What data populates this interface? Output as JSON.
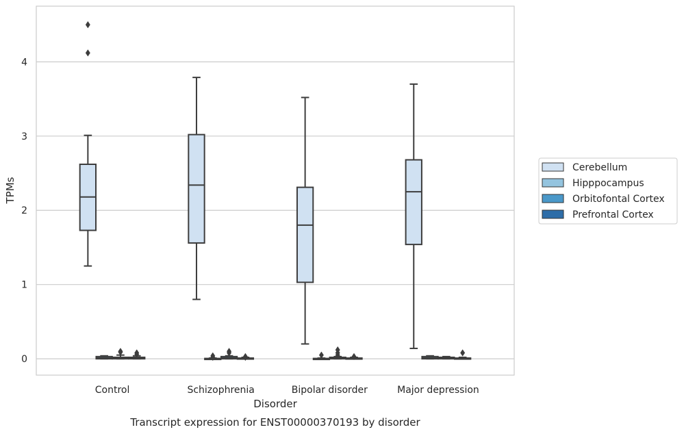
{
  "chart_data": {
    "type": "box",
    "title": "",
    "caption": "Transcript expression for ENST00000370193 by disorder",
    "xlabel": "Disorder",
    "ylabel": "TPMs",
    "ylim": [
      -0.22,
      4.75
    ],
    "yticks": [
      0,
      1,
      2,
      3,
      4
    ],
    "grid": "horizontal",
    "legend_position": "right",
    "categories": [
      "Control",
      "Schizophrenia",
      "Bipolar disorder",
      "Major depression"
    ],
    "series": [
      {
        "name": "Cerebellum",
        "color": "#d0e1f2",
        "boxes": [
          {
            "whislo": 1.25,
            "q1": 1.73,
            "med": 2.18,
            "q3": 2.62,
            "whishi": 3.01,
            "fliers": [
              4.12,
              4.5
            ]
          },
          {
            "whislo": 0.8,
            "q1": 1.56,
            "med": 2.34,
            "q3": 3.02,
            "whishi": 3.79,
            "fliers": []
          },
          {
            "whislo": 0.2,
            "q1": 1.03,
            "med": 1.8,
            "q3": 2.31,
            "whishi": 3.52,
            "fliers": []
          },
          {
            "whislo": 0.14,
            "q1": 1.54,
            "med": 2.25,
            "q3": 2.68,
            "whishi": 3.7,
            "fliers": []
          }
        ]
      },
      {
        "name": "Hipppocampus",
        "color": "#94c4df",
        "boxes": [
          {
            "whislo": 0.0,
            "q1": 0.0,
            "med": 0.01,
            "q3": 0.03,
            "whishi": 0.04,
            "fliers": []
          },
          {
            "whislo": 0.0,
            "q1": 0.0,
            "med": 0.0,
            "q3": 0.005,
            "whishi": 0.01,
            "fliers": [
              0.02,
              0.04
            ]
          },
          {
            "whislo": 0.0,
            "q1": 0.0,
            "med": 0.0,
            "q3": 0.005,
            "whishi": 0.01,
            "fliers": [
              0.05
            ]
          },
          {
            "whislo": 0.0,
            "q1": 0.0,
            "med": 0.01,
            "q3": 0.03,
            "whishi": 0.04,
            "fliers": []
          }
        ]
      },
      {
        "name": "Orbitofontal Cortex",
        "color": "#4a98c9",
        "boxes": [
          {
            "whislo": 0.0,
            "q1": 0.0,
            "med": 0.01,
            "q3": 0.02,
            "whishi": 0.05,
            "fliers": [
              0.09,
              0.1
            ]
          },
          {
            "whislo": 0.0,
            "q1": 0.0,
            "med": 0.01,
            "q3": 0.03,
            "whishi": 0.04,
            "fliers": [
              0.08,
              0.1
            ]
          },
          {
            "whislo": 0.0,
            "q1": 0.0,
            "med": 0.01,
            "q3": 0.02,
            "whishi": 0.03,
            "fliers": [
              0.05,
              0.08,
              0.12
            ]
          },
          {
            "whislo": 0.0,
            "q1": 0.0,
            "med": 0.01,
            "q3": 0.02,
            "whishi": 0.03,
            "fliers": []
          }
        ]
      },
      {
        "name": "Prefrontal Cortex",
        "color": "#2e6da8",
        "boxes": [
          {
            "whislo": 0.0,
            "q1": 0.0,
            "med": 0.01,
            "q3": 0.02,
            "whishi": 0.04,
            "fliers": [
              0.06,
              0.08
            ]
          },
          {
            "whislo": 0.0,
            "q1": 0.0,
            "med": 0.0,
            "q3": 0.01,
            "whishi": 0.02,
            "fliers": [
              0.02,
              0.03
            ]
          },
          {
            "whislo": 0.0,
            "q1": 0.0,
            "med": 0.0,
            "q3": 0.01,
            "whishi": 0.02,
            "fliers": [
              0.03
            ]
          },
          {
            "whislo": 0.0,
            "q1": 0.0,
            "med": 0.0,
            "q3": 0.01,
            "whishi": 0.02,
            "fliers": [
              0.08
            ]
          }
        ]
      }
    ]
  }
}
